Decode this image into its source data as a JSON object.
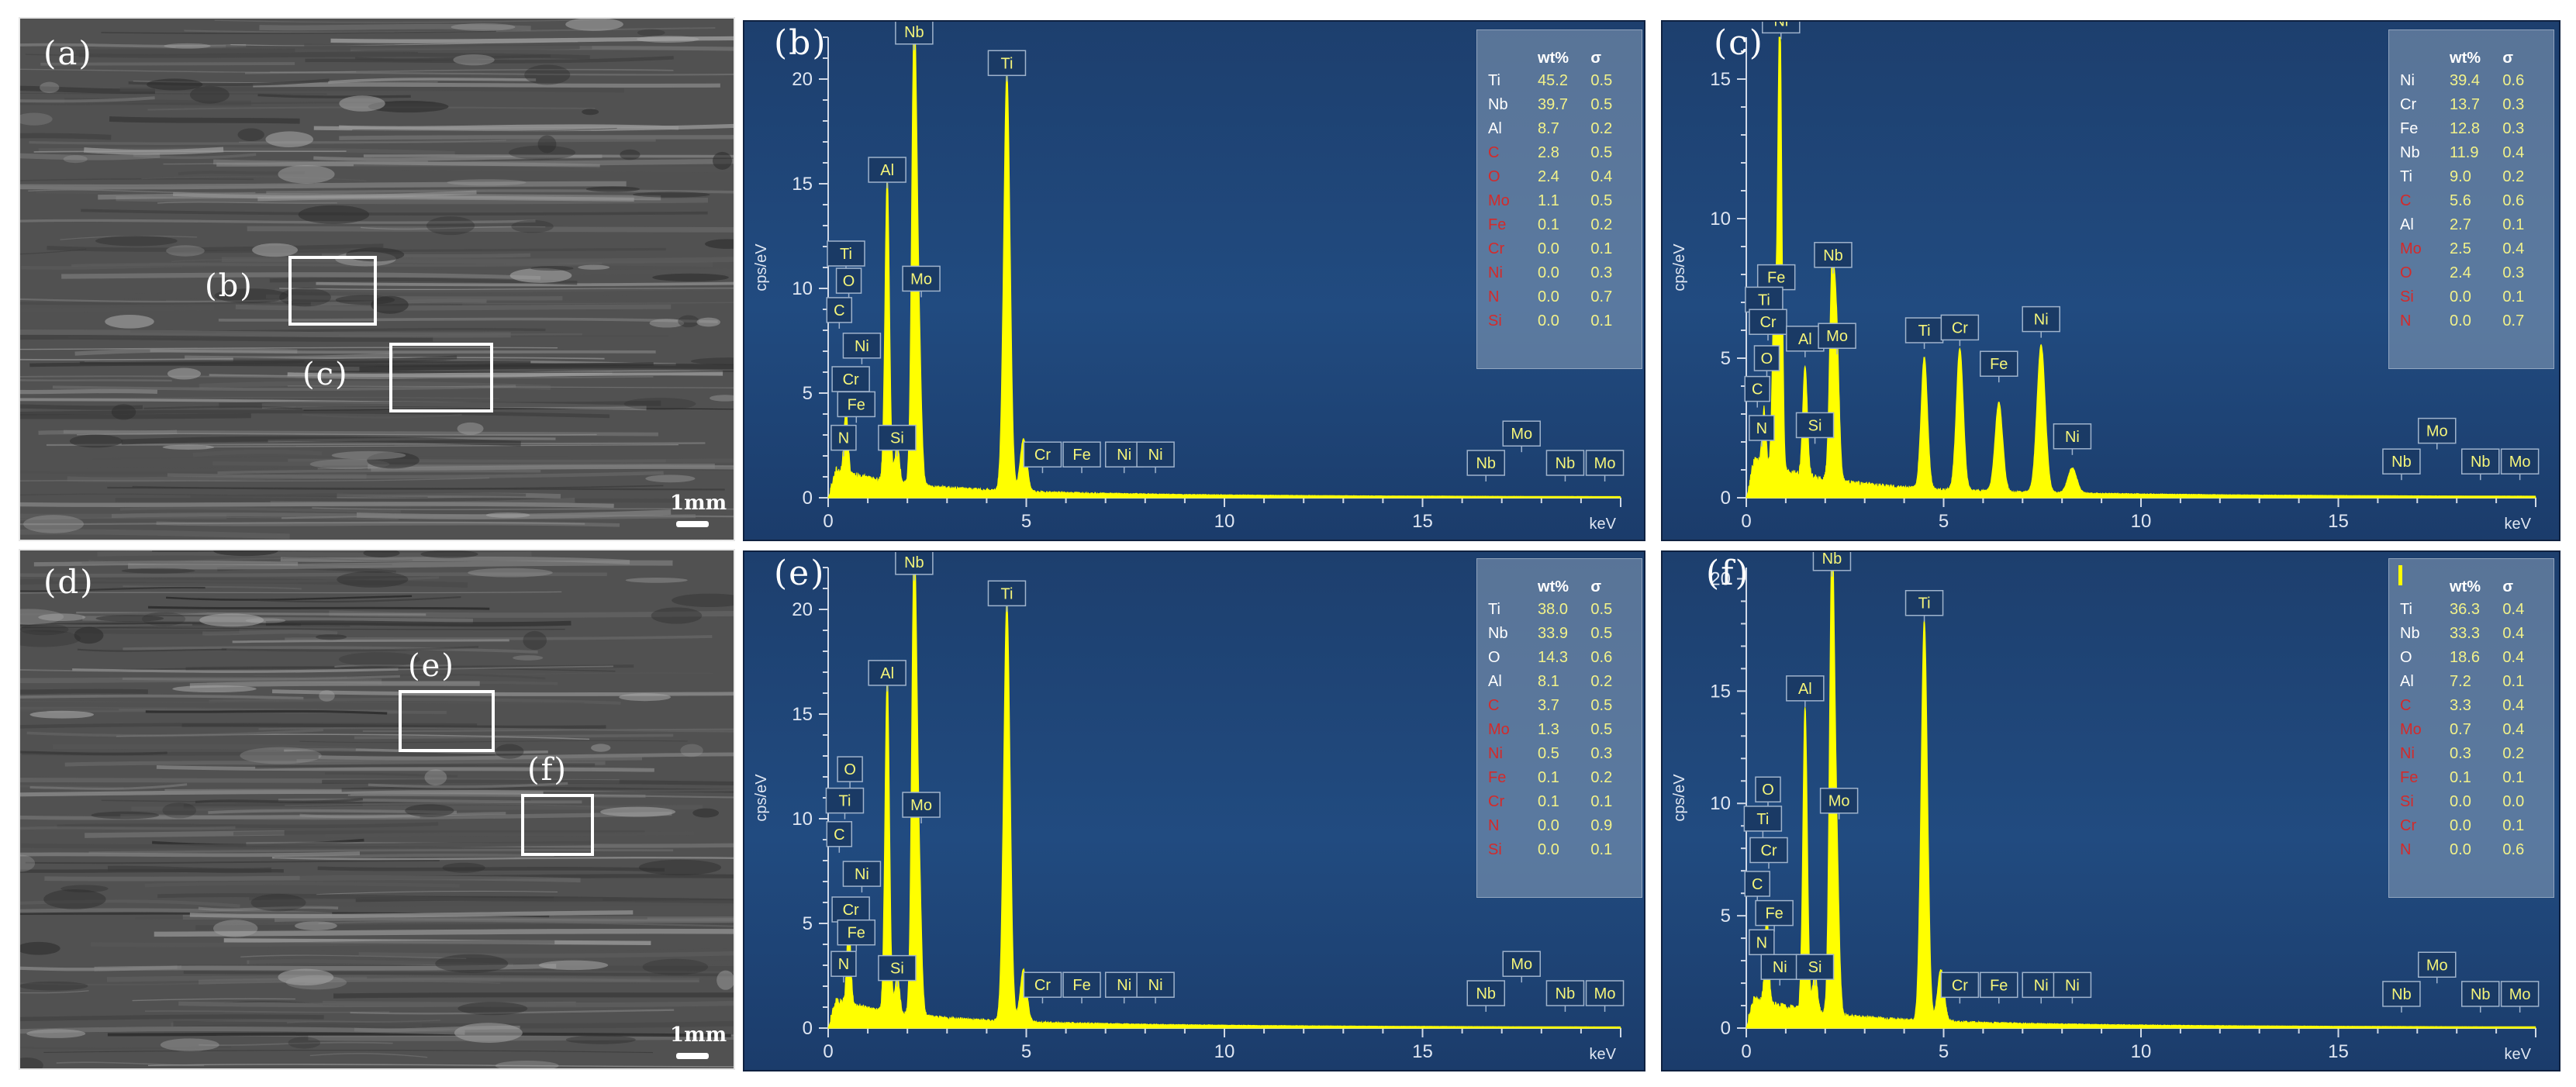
{
  "panels": [
    {
      "id": "a",
      "label": "(a)",
      "scale": "1mm",
      "rois": [
        {
          "label": "(b)"
        },
        {
          "label": "(c)"
        }
      ]
    },
    {
      "id": "d",
      "label": "(d)",
      "scale": "1mm",
      "rois": [
        {
          "label": "(e)"
        },
        {
          "label": "(f)"
        }
      ]
    }
  ],
  "chart_data": [
    {
      "type": "line",
      "label": "(b)",
      "ylabel": "cps/eV",
      "xlabel": "keV",
      "xlim": [
        0,
        20
      ],
      "ylim": [
        0,
        22
      ],
      "xticks": [
        0,
        5,
        10,
        15
      ],
      "yticks": [
        0,
        5,
        10,
        15,
        20
      ],
      "series": [
        {
          "values": "EDS spectrum",
          "color": "#ffff00"
        }
      ],
      "peaks": [
        {
          "el": "Ti",
          "x": 0.45,
          "y": 3.2
        },
        {
          "el": "Nb",
          "x": 2.17,
          "y": 22
        },
        {
          "el": "Ti",
          "x": 4.51,
          "y": 20
        },
        {
          "el": "Al",
          "x": 1.49,
          "y": 14.5
        },
        {
          "el": "Mo",
          "x": 2.29,
          "y": 6.5
        },
        {
          "el": "Si",
          "x": 1.74,
          "y": 1.8
        },
        {
          "el": "Ti",
          "x": 4.93,
          "y": 2.5
        }
      ],
      "peak_labels": [
        {
          "text": "Nb",
          "x": 2.17,
          "y": 21.6
        },
        {
          "text": "Ti",
          "x": 4.51,
          "y": 20.1
        },
        {
          "text": "Al",
          "x": 1.49,
          "y": 15.0
        },
        {
          "text": "Mo",
          "x": 2.35,
          "y": 9.8
        },
        {
          "text": "Ti",
          "x": 0.45,
          "y": 11.0
        },
        {
          "text": "O",
          "x": 0.52,
          "y": 9.7
        },
        {
          "text": "C",
          "x": 0.28,
          "y": 8.3
        },
        {
          "text": "Ni",
          "x": 0.85,
          "y": 6.6
        },
        {
          "text": "Cr",
          "x": 0.57,
          "y": 5.0
        },
        {
          "text": "Fe",
          "x": 0.71,
          "y": 3.8
        },
        {
          "text": "N",
          "x": 0.39,
          "y": 2.2
        },
        {
          "text": "Si",
          "x": 1.74,
          "y": 2.2
        },
        {
          "text": "Cr",
          "x": 5.41,
          "y": 1.4
        },
        {
          "text": "Fe",
          "x": 6.4,
          "y": 1.4
        },
        {
          "text": "Ni",
          "x": 7.47,
          "y": 1.4
        },
        {
          "text": "Ni",
          "x": 8.26,
          "y": 1.4
        },
        {
          "text": "Nb",
          "x": 16.6,
          "y": 1.0
        },
        {
          "text": "Mo",
          "x": 17.5,
          "y": 2.4
        },
        {
          "text": "Nb",
          "x": 18.6,
          "y": 1.0
        },
        {
          "text": "Mo",
          "x": 19.6,
          "y": 1.0
        }
      ],
      "table": {
        "headers": [
          "",
          "wt%",
          "σ"
        ],
        "rows": [
          [
            "Ti",
            "45.2",
            "0.5"
          ],
          [
            "Nb",
            "39.7",
            "0.5"
          ],
          [
            "Al",
            "8.7",
            "0.2"
          ],
          [
            "C",
            "2.8",
            "0.5"
          ],
          [
            "O",
            "2.4",
            "0.4"
          ],
          [
            "Mo",
            "1.1",
            "0.5"
          ],
          [
            "Fe",
            "0.1",
            "0.2"
          ],
          [
            "Cr",
            "0.0",
            "0.1"
          ],
          [
            "Ni",
            "0.0",
            "0.3"
          ],
          [
            "N",
            "0.0",
            "0.7"
          ],
          [
            "Si",
            "0.0",
            "0.1"
          ]
        ],
        "red_from": 3
      }
    },
    {
      "type": "line",
      "label": "(c)",
      "ylabel": "cps/eV",
      "xlabel": "keV",
      "xlim": [
        0,
        20
      ],
      "ylim": [
        0,
        16.5
      ],
      "xticks": [
        0,
        5,
        10,
        15
      ],
      "yticks": [
        0,
        5,
        10,
        15
      ],
      "series": [
        {
          "values": "EDS spectrum",
          "color": "#ffff00"
        }
      ],
      "peaks": [
        {
          "el": "Ni",
          "x": 0.85,
          "y": 16.5
        },
        {
          "el": "Nb",
          "x": 2.17,
          "y": 7.2
        },
        {
          "el": "Ti",
          "x": 4.51,
          "y": 4.7
        },
        {
          "el": "Cr",
          "x": 5.41,
          "y": 5.1
        },
        {
          "el": "Fe",
          "x": 6.4,
          "y": 3.2
        },
        {
          "el": "Ni",
          "x": 7.47,
          "y": 5.3
        },
        {
          "el": "Al",
          "x": 1.49,
          "y": 4.0
        },
        {
          "el": "Mo",
          "x": 2.29,
          "y": 5.0
        },
        {
          "el": "Ni",
          "x": 8.26,
          "y": 0.9
        },
        {
          "el": "Fe",
          "x": 0.71,
          "y": 6.3
        },
        {
          "el": "Ti",
          "x": 0.45,
          "y": 2.0
        }
      ],
      "peak_labels": [
        {
          "text": "Ni",
          "x": 0.88,
          "y": 16.6
        },
        {
          "text": "Nb",
          "x": 2.2,
          "y": 8.2
        },
        {
          "text": "Fe",
          "x": 0.76,
          "y": 7.4
        },
        {
          "text": "Ti",
          "x": 0.45,
          "y": 6.6
        },
        {
          "text": "Cr",
          "x": 0.55,
          "y": 5.8
        },
        {
          "text": "O",
          "x": 0.52,
          "y": 4.5
        },
        {
          "text": "C",
          "x": 0.28,
          "y": 3.4
        },
        {
          "text": "N",
          "x": 0.39,
          "y": 2.0
        },
        {
          "text": "Al",
          "x": 1.49,
          "y": 5.2
        },
        {
          "text": "Mo",
          "x": 2.3,
          "y": 5.3
        },
        {
          "text": "Si",
          "x": 1.74,
          "y": 2.1
        },
        {
          "text": "Ti",
          "x": 4.51,
          "y": 5.5
        },
        {
          "text": "Cr",
          "x": 5.41,
          "y": 5.6
        },
        {
          "text": "Fe",
          "x": 6.4,
          "y": 4.3
        },
        {
          "text": "Ni",
          "x": 7.47,
          "y": 5.9
        },
        {
          "text": "Ni",
          "x": 8.26,
          "y": 1.7
        },
        {
          "text": "Nb",
          "x": 16.6,
          "y": 0.8
        },
        {
          "text": "Mo",
          "x": 17.5,
          "y": 1.9
        },
        {
          "text": "Nb",
          "x": 18.6,
          "y": 0.8
        },
        {
          "text": "Mo",
          "x": 19.6,
          "y": 0.8
        }
      ],
      "table": {
        "headers": [
          "",
          "wt%",
          "σ"
        ],
        "rows": [
          [
            "Ni",
            "39.4",
            "0.6"
          ],
          [
            "Cr",
            "13.7",
            "0.3"
          ],
          [
            "Fe",
            "12.8",
            "0.3"
          ],
          [
            "Nb",
            "11.9",
            "0.4"
          ],
          [
            "Ti",
            "9.0",
            "0.2"
          ],
          [
            "C",
            "5.6",
            "0.6"
          ],
          [
            "Al",
            "2.7",
            "0.1"
          ],
          [
            "Mo",
            "2.5",
            "0.4"
          ],
          [
            "O",
            "2.4",
            "0.3"
          ],
          [
            "Si",
            "0.0",
            "0.1"
          ],
          [
            "N",
            "0.0",
            "0.7"
          ]
        ],
        "red_from": 5,
        "red_rows": [
          5,
          7,
          8,
          9,
          10
        ]
      }
    },
    {
      "type": "line",
      "label": "(e)",
      "ylabel": "cps/eV",
      "xlabel": "keV",
      "xlim": [
        0,
        20
      ],
      "ylim": [
        0,
        22
      ],
      "xticks": [
        0,
        5,
        10,
        15
      ],
      "yticks": [
        0,
        5,
        10,
        15,
        20
      ],
      "series": [
        {
          "values": "EDS spectrum",
          "color": "#ffff00"
        }
      ],
      "peaks": [
        {
          "el": "Nb",
          "x": 2.17,
          "y": 22
        },
        {
          "el": "Ti",
          "x": 4.51,
          "y": 20
        },
        {
          "el": "Al",
          "x": 1.49,
          "y": 16
        },
        {
          "el": "Mo",
          "x": 2.29,
          "y": 6.5
        },
        {
          "el": "O",
          "x": 0.52,
          "y": 4.0
        },
        {
          "el": "Si",
          "x": 1.74,
          "y": 1.8
        },
        {
          "el": "Ti",
          "x": 4.93,
          "y": 2.5
        }
      ],
      "peak_labels": [
        {
          "text": "Nb",
          "x": 2.17,
          "y": 21.6
        },
        {
          "text": "Ti",
          "x": 4.51,
          "y": 20.1
        },
        {
          "text": "Al",
          "x": 1.49,
          "y": 16.3
        },
        {
          "text": "Mo",
          "x": 2.35,
          "y": 10.0
        },
        {
          "text": "O",
          "x": 0.55,
          "y": 11.7
        },
        {
          "text": "Ti",
          "x": 0.42,
          "y": 10.2
        },
        {
          "text": "C",
          "x": 0.28,
          "y": 8.6
        },
        {
          "text": "Ni",
          "x": 0.85,
          "y": 6.7
        },
        {
          "text": "Cr",
          "x": 0.57,
          "y": 5.0
        },
        {
          "text": "Fe",
          "x": 0.71,
          "y": 3.9
        },
        {
          "text": "N",
          "x": 0.39,
          "y": 2.4
        },
        {
          "text": "Si",
          "x": 1.74,
          "y": 2.2
        },
        {
          "text": "Cr",
          "x": 5.41,
          "y": 1.4
        },
        {
          "text": "Fe",
          "x": 6.4,
          "y": 1.4
        },
        {
          "text": "Ni",
          "x": 7.47,
          "y": 1.4
        },
        {
          "text": "Ni",
          "x": 8.26,
          "y": 1.4
        },
        {
          "text": "Nb",
          "x": 16.6,
          "y": 1.0
        },
        {
          "text": "Mo",
          "x": 17.5,
          "y": 2.4
        },
        {
          "text": "Nb",
          "x": 18.6,
          "y": 1.0
        },
        {
          "text": "Mo",
          "x": 19.6,
          "y": 1.0
        }
      ],
      "table": {
        "headers": [
          "",
          "wt%",
          "σ"
        ],
        "rows": [
          [
            "Ti",
            "38.0",
            "0.5"
          ],
          [
            "Nb",
            "33.9",
            "0.5"
          ],
          [
            "O",
            "14.3",
            "0.6"
          ],
          [
            "Al",
            "8.1",
            "0.2"
          ],
          [
            "C",
            "3.7",
            "0.5"
          ],
          [
            "Mo",
            "1.3",
            "0.5"
          ],
          [
            "Ni",
            "0.5",
            "0.3"
          ],
          [
            "Fe",
            "0.1",
            "0.2"
          ],
          [
            "Cr",
            "0.1",
            "0.1"
          ],
          [
            "N",
            "0.0",
            "0.9"
          ],
          [
            "Si",
            "0.0",
            "0.1"
          ]
        ],
        "red_from": 4
      }
    },
    {
      "type": "line",
      "label": "(f)",
      "ylabel": "cps/eV",
      "xlabel": "keV",
      "xlim": [
        0,
        20
      ],
      "ylim": [
        0,
        20.5
      ],
      "xticks": [
        0,
        5,
        10,
        15
      ],
      "yticks": [
        0,
        5,
        10,
        15,
        20
      ],
      "series": [
        {
          "values": "EDS spectrum",
          "color": "#ffff00"
        }
      ],
      "peaks": [
        {
          "el": "Nb",
          "x": 2.17,
          "y": 20.5
        },
        {
          "el": "Ti",
          "x": 4.51,
          "y": 17.8
        },
        {
          "el": "Al",
          "x": 1.49,
          "y": 13.5
        },
        {
          "el": "Mo",
          "x": 2.29,
          "y": 6.5
        },
        {
          "el": "O",
          "x": 0.52,
          "y": 4.0
        },
        {
          "el": "Si",
          "x": 1.74,
          "y": 1.8
        },
        {
          "el": "Ti",
          "x": 4.93,
          "y": 2.3
        }
      ],
      "peak_labels": [
        {
          "text": "Nb",
          "x": 2.17,
          "y": 20.3
        },
        {
          "text": "Ti",
          "x": 4.51,
          "y": 18.3
        },
        {
          "text": "Al",
          "x": 1.49,
          "y": 14.5
        },
        {
          "text": "Mo",
          "x": 2.35,
          "y": 9.5
        },
        {
          "text": "O",
          "x": 0.55,
          "y": 10.0
        },
        {
          "text": "Ti",
          "x": 0.42,
          "y": 8.7
        },
        {
          "text": "Cr",
          "x": 0.57,
          "y": 7.3
        },
        {
          "text": "C",
          "x": 0.28,
          "y": 5.8
        },
        {
          "text": "Fe",
          "x": 0.71,
          "y": 4.5
        },
        {
          "text": "N",
          "x": 0.39,
          "y": 3.2
        },
        {
          "text": "Ni",
          "x": 0.85,
          "y": 2.1
        },
        {
          "text": "Si",
          "x": 1.74,
          "y": 2.1
        },
        {
          "text": "Cr",
          "x": 5.41,
          "y": 1.3
        },
        {
          "text": "Fe",
          "x": 6.4,
          "y": 1.3
        },
        {
          "text": "Ni",
          "x": 7.47,
          "y": 1.3
        },
        {
          "text": "Ni",
          "x": 8.26,
          "y": 1.3
        },
        {
          "text": "Nb",
          "x": 16.6,
          "y": 0.9
        },
        {
          "text": "Mo",
          "x": 17.5,
          "y": 2.2
        },
        {
          "text": "Nb",
          "x": 18.6,
          "y": 0.9
        },
        {
          "text": "Mo",
          "x": 19.6,
          "y": 0.9
        }
      ],
      "table": {
        "headers": [
          "",
          "wt%",
          "σ"
        ],
        "rows": [
          [
            "Ti",
            "36.3",
            "0.4"
          ],
          [
            "Nb",
            "33.3",
            "0.4"
          ],
          [
            "O",
            "18.6",
            "0.4"
          ],
          [
            "Al",
            "7.2",
            "0.1"
          ],
          [
            "C",
            "3.3",
            "0.4"
          ],
          [
            "Mo",
            "0.7",
            "0.4"
          ],
          [
            "Ni",
            "0.3",
            "0.2"
          ],
          [
            "Fe",
            "0.1",
            "0.1"
          ],
          [
            "Si",
            "0.0",
            "0.0"
          ],
          [
            "Cr",
            "0.0",
            "0.1"
          ],
          [
            "N",
            "0.0",
            "0.6"
          ]
        ],
        "red_from": 4
      }
    }
  ]
}
